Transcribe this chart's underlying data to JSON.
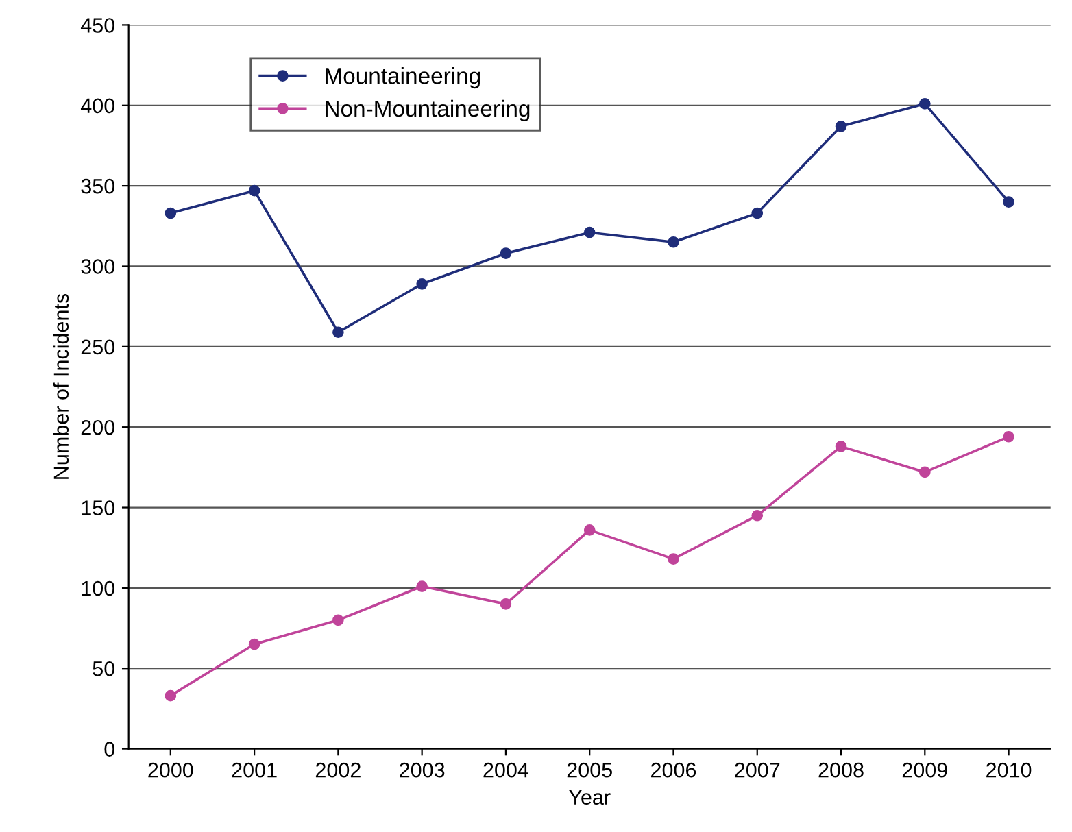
{
  "chart_data": {
    "type": "line",
    "xlabel": "Year",
    "ylabel": "Number of Incidents",
    "categories": [
      "2000",
      "2001",
      "2002",
      "2003",
      "2004",
      "2005",
      "2006",
      "2007",
      "2008",
      "2009",
      "2010"
    ],
    "series": [
      {
        "name": "Mountaineering",
        "color": "#1f2d7a",
        "values": [
          333,
          347,
          259,
          289,
          308,
          321,
          315,
          333,
          387,
          401,
          340
        ]
      },
      {
        "name": "Non-Mountaineering",
        "color": "#c0449a",
        "values": [
          33,
          65,
          80,
          101,
          90,
          136,
          118,
          145,
          188,
          172,
          194
        ]
      }
    ],
    "ylim": [
      0,
      450
    ],
    "yticks": [
      0,
      50,
      100,
      150,
      200,
      250,
      300,
      350,
      400,
      450
    ],
    "grid": "y",
    "legend": "top left",
    "marker": "circle",
    "line_style": "solid"
  }
}
